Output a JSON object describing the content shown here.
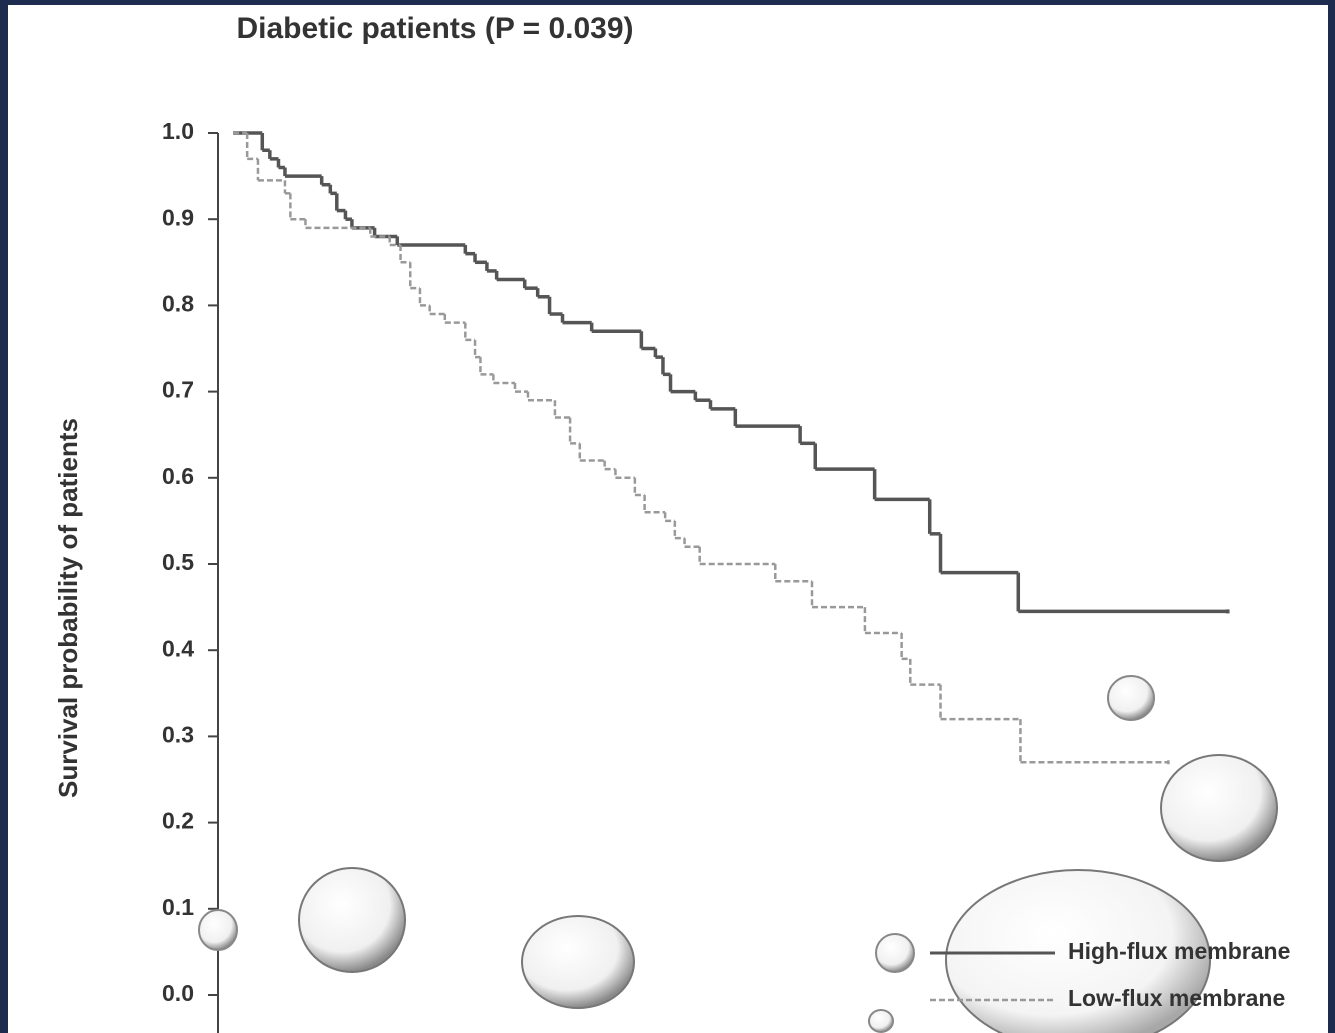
{
  "chart_data": {
    "type": "step",
    "title": "Diabetic patients (P = 0.039)",
    "y_label": "Survival probability of patients",
    "xlim": [
      0,
      100
    ],
    "ylim": [
      0,
      1.0
    ],
    "yticks": [
      {
        "value": 0,
        "label": "0.0"
      },
      0.1,
      0.2,
      0.3,
      0.4,
      0.5,
      0.6,
      0.7,
      0.8,
      0.9,
      {
        "value": 1,
        "label": "1.0"
      }
    ],
    "legend": "bottom-right",
    "series": [
      {
        "name": "High-flux membrane",
        "color": "#555555",
        "dash": false,
        "x": [
          1.4,
          4.1,
          4.8,
          5.6,
          6.2,
          9.6,
          10.4,
          11.0,
          11.8,
          12.4,
          14.5,
          16.6,
          22.9,
          23.8,
          24.9,
          25.8,
          28.4,
          29.6,
          30.7,
          31.9,
          34.6,
          39.2,
          40.5,
          41.2,
          41.9,
          44.2,
          45.6,
          47.9,
          53.9,
          55.3,
          60.8,
          65.9,
          66.9,
          74.1,
          93.5
        ],
        "values": [
          1.0,
          0.98,
          0.97,
          0.96,
          0.95,
          0.94,
          0.93,
          0.91,
          0.9,
          0.89,
          0.88,
          0.87,
          0.86,
          0.85,
          0.84,
          0.83,
          0.82,
          0.81,
          0.79,
          0.78,
          0.77,
          0.75,
          0.74,
          0.72,
          0.7,
          0.69,
          0.68,
          0.66,
          0.64,
          0.61,
          0.575,
          0.535,
          0.49,
          0.445,
          0.445
        ]
      },
      {
        "name": "Low-flux membrane",
        "color": "#999999",
        "dash": true,
        "x": [
          1.4,
          2.7,
          3.7,
          6.2,
          6.7,
          8.1,
          14.1,
          15.9,
          16.9,
          17.8,
          18.7,
          19.6,
          21.0,
          22.9,
          23.8,
          24.3,
          25.5,
          27.5,
          28.7,
          31.2,
          32.6,
          33.5,
          35.8,
          36.8,
          38.6,
          39.5,
          41.4,
          42.3,
          43.2,
          44.6,
          51.6,
          55.0,
          59.9,
          63.3,
          64.1,
          66.9,
          74.3,
          88.0
        ],
        "values": [
          1.0,
          0.97,
          0.945,
          0.93,
          0.9,
          0.89,
          0.88,
          0.87,
          0.85,
          0.82,
          0.8,
          0.79,
          0.78,
          0.76,
          0.74,
          0.72,
          0.71,
          0.7,
          0.69,
          0.67,
          0.64,
          0.62,
          0.61,
          0.6,
          0.58,
          0.56,
          0.55,
          0.53,
          0.52,
          0.5,
          0.48,
          0.45,
          0.42,
          0.39,
          0.36,
          0.32,
          0.27,
          0.27
        ]
      }
    ]
  }
}
